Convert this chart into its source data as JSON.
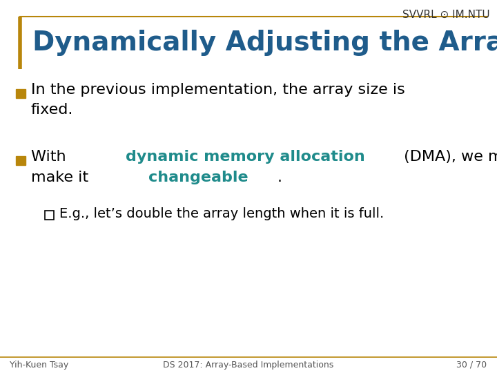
{
  "title": "Dynamically Adjusting the Array Size",
  "title_color": "#1F5C8B",
  "title_fontsize": 28,
  "header_line_color": "#B8860B",
  "logo_text": "SVVRL ⊙ IM.NTU",
  "logo_color": "#333333",
  "logo_fontsize": 11,
  "bullet_color": "#B8860B",
  "bullet1_text1": "In the previous implementation, the array size is",
  "bullet1_text2": "fixed.",
  "bullet2_text1": "With ",
  "bullet2_highlight": "dynamic memory allocation",
  "bullet2_text2": " (DMA), we may",
  "bullet2_text3": "make it ",
  "bullet2_highlight2": "changeable",
  "bullet2_text4": ".",
  "sub_bullet_text": "E.g., let’s double the array length when it is full.",
  "highlight_color": "#1F8B8B",
  "highlight2_color": "#1F8B8B",
  "footer_left": "Yih-Kuen Tsay",
  "footer_center": "DS 2017: Array-Based Implementations",
  "footer_right": "30 / 70",
  "footer_color": "#555555",
  "footer_fontsize": 9,
  "bg_color": "#ffffff",
  "text_color": "#000000",
  "main_fontsize": 16,
  "sub_fontsize": 14
}
